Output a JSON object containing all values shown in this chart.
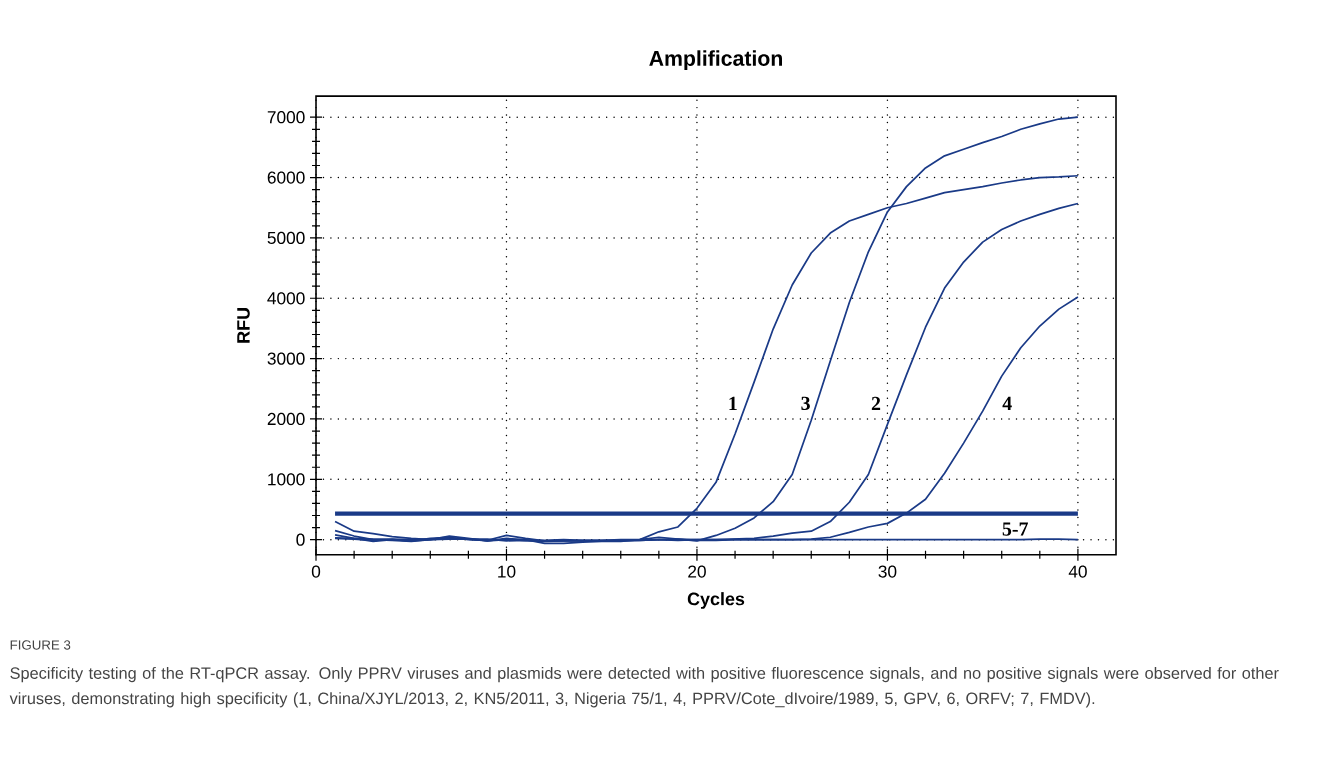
{
  "chart_data": {
    "type": "line",
    "title": "Amplification",
    "xlabel": "Cycles",
    "ylabel": "RFU",
    "x": [
      1,
      2,
      3,
      4,
      5,
      6,
      7,
      8,
      9,
      10,
      11,
      12,
      13,
      14,
      15,
      16,
      17,
      18,
      19,
      20,
      21,
      22,
      23,
      24,
      25,
      26,
      27,
      28,
      29,
      30,
      31,
      32,
      33,
      34,
      35,
      36,
      37,
      38,
      39,
      40
    ],
    "series": [
      {
        "color": "#1a3a87",
        "values": [
          300,
          140,
          100,
          50,
          20,
          0,
          20,
          10,
          -20,
          0,
          -10,
          -30,
          -20,
          -10,
          -10,
          -10,
          0,
          130,
          210,
          520,
          950,
          1750,
          2610,
          3490,
          4220,
          4750,
          5080,
          5280,
          5390,
          5500,
          5570,
          5660,
          5750,
          5800,
          5850,
          5910,
          5960,
          6000,
          6010,
          6030
        ]
      },
      {
        "color": "#1a3a87",
        "values": [
          80,
          20,
          -30,
          0,
          -20,
          20,
          40,
          0,
          -10,
          70,
          20,
          -20,
          -10,
          -20,
          -20,
          -10,
          -10,
          0,
          10,
          0,
          0,
          10,
          20,
          60,
          110,
          140,
          300,
          620,
          1080,
          1910,
          2730,
          3520,
          4170,
          4600,
          4930,
          5140,
          5280,
          5390,
          5490,
          5570
        ]
      },
      {
        "color": "#1a3a87",
        "values": [
          150,
          60,
          0,
          -10,
          -30,
          0,
          60,
          20,
          -20,
          20,
          0,
          -60,
          -60,
          -40,
          -30,
          -30,
          0,
          40,
          10,
          -20,
          70,
          190,
          360,
          630,
          1080,
          1980,
          2960,
          3930,
          4770,
          5430,
          5850,
          6160,
          6360,
          6470,
          6580,
          6680,
          6800,
          6890,
          6970,
          7000
        ]
      },
      {
        "color": "#1a3a87",
        "values": [
          30,
          20,
          10,
          10,
          0,
          10,
          20,
          10,
          10,
          -20,
          -10,
          -20,
          -20,
          -20,
          -20,
          -20,
          -10,
          0,
          0,
          -10,
          -10,
          0,
          0,
          0,
          0,
          10,
          40,
          120,
          210,
          270,
          440,
          670,
          1100,
          1600,
          2130,
          2710,
          3180,
          3540,
          3820,
          4020
        ]
      },
      {
        "color": "#1a3a87",
        "values": [
          20,
          10,
          -10,
          0,
          -20,
          0,
          10,
          10,
          -10,
          0,
          -10,
          -10,
          0,
          -10,
          -10,
          0,
          0,
          0,
          -10,
          0,
          0,
          0,
          0,
          0,
          0,
          0,
          0,
          0,
          0,
          0,
          0,
          0,
          0,
          0,
          0,
          0,
          0,
          10,
          10,
          0
        ]
      }
    ],
    "ref_lines": [
      {
        "axis": "y",
        "value": 430,
        "color": "#1a3a87"
      }
    ],
    "xlim": [
      0,
      42
    ],
    "ylim": [
      -250,
      7350
    ],
    "xticks": [
      0,
      10,
      20,
      30,
      40
    ],
    "yticks": [
      0,
      1000,
      2000,
      3000,
      4000,
      5000,
      6000,
      7000
    ],
    "grid": true,
    "marker": "none",
    "line_style": "solid",
    "annotations": [
      "1",
      "3",
      "2",
      "4",
      "5-7",
      "FIGURE 3",
      "Specificity testing of the RT-qPCR assay. Only PPRV viruses and plasmids were detected with positive fluorescence signals, and no positive signals were observed for other viruses, demonstrating high specificity (1, China/XJYL/2013, 2, KN5/2011, 3, Nigeria 75/1, 4, PPRV/Cote_dIvoire/1989, 5, GPV, 6, ORFV; 7, FMDV)."
    ]
  }
}
